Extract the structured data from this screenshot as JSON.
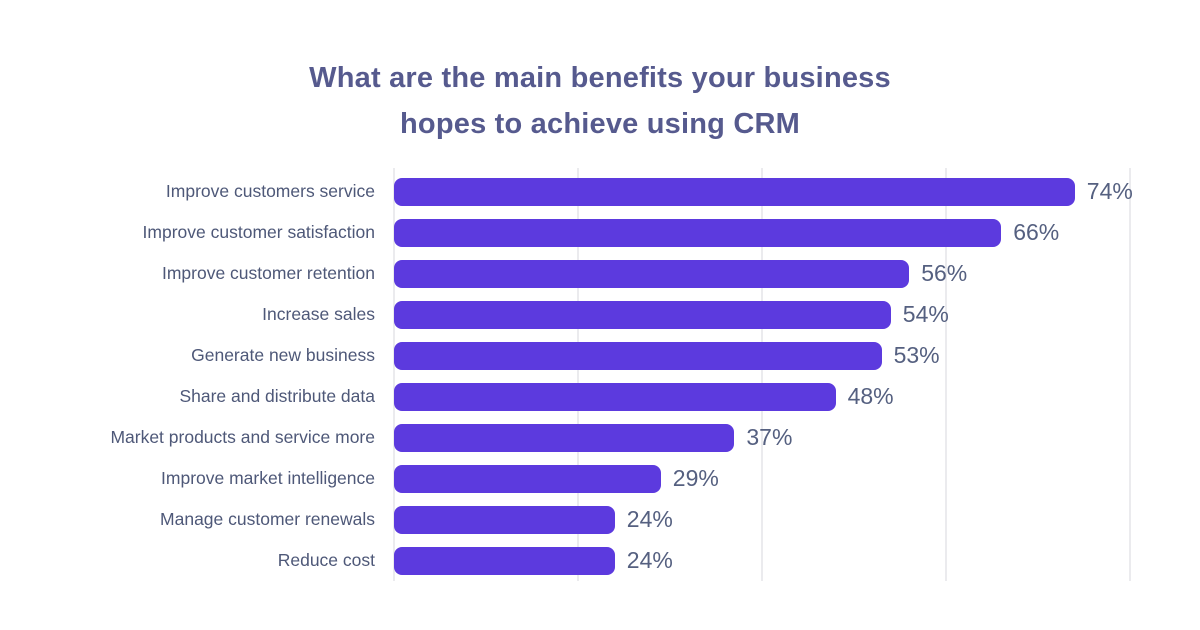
{
  "title": {
    "line1": "What are the main benefits your business",
    "line2": "hopes to achieve using CRM"
  },
  "colors": {
    "bar": "#5c3ade",
    "title_text": "#565a8e",
    "category_text": "#4e5878",
    "value_text": "#556080",
    "gridline": "#ebebee",
    "background": "#ffffff"
  },
  "chart_data": {
    "type": "bar",
    "orientation": "horizontal",
    "title": "What are the main benefits your business hopes to achieve using CRM",
    "categories": [
      "Improve customers service",
      "Improve customer satisfaction",
      "Improve customer retention",
      "Increase sales",
      "Generate new business",
      "Share and distribute data",
      "Market products and service more",
      "Improve market intelligence",
      "Manage customer renewals",
      "Reduce cost"
    ],
    "values": [
      74,
      66,
      56,
      54,
      53,
      48,
      37,
      29,
      24,
      24
    ],
    "value_suffix": "%",
    "data_labels": true,
    "xlabel": "",
    "ylabel": "",
    "xlim": [
      0,
      85
    ],
    "gridline_values": [
      0,
      20,
      40,
      60,
      80
    ],
    "grid": true,
    "legend": false
  }
}
